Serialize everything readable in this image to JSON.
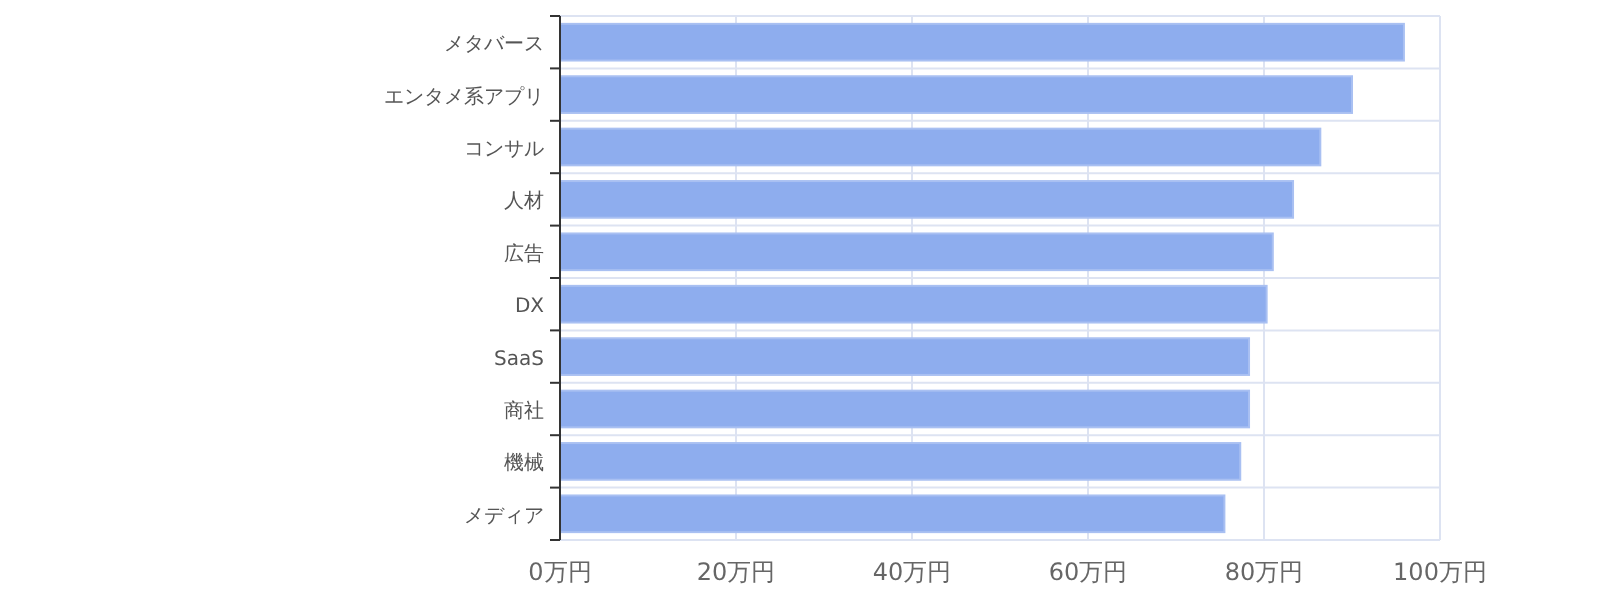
{
  "chart_data": {
    "type": "bar",
    "orientation": "horizontal",
    "grid": true,
    "categories": [
      "メタバース",
      "エンタメ系アプリ",
      "コンサル",
      "人材",
      "広告",
      "DX",
      "SaaS",
      "商社",
      "機械",
      "メディア"
    ],
    "values": [
      95.9,
      90.0,
      86.4,
      83.3,
      81.0,
      80.3,
      78.3,
      78.3,
      77.3,
      75.5
    ],
    "color": "#8eadee",
    "xlim": [
      0,
      100
    ],
    "xticks": [
      {
        "value": 0,
        "label": "0万円"
      },
      {
        "value": 20,
        "label": "20万円"
      },
      {
        "value": 40,
        "label": "40万円"
      },
      {
        "value": 60,
        "label": "60万円"
      },
      {
        "value": 80,
        "label": "80万円"
      },
      {
        "value": 100,
        "label": "100万円"
      }
    ]
  }
}
